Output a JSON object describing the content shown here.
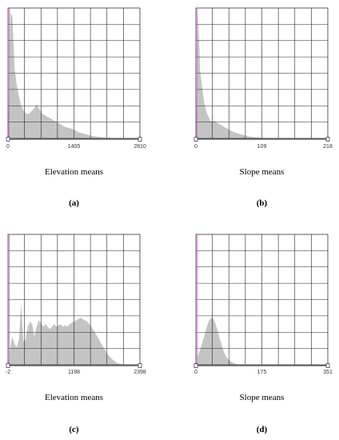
{
  "chart_data": [
    {
      "type": "area",
      "panel_label": "(a)",
      "xlabel": "Elevation means",
      "ticks": [
        "0",
        "1405",
        "2810"
      ],
      "xlim": [
        0,
        2810
      ],
      "y_norm": [
        0,
        1.0,
        0.95,
        0.55,
        0.42,
        0.33,
        0.26,
        0.22,
        0.2,
        0.19,
        0.2,
        0.22,
        0.24,
        0.27,
        0.24,
        0.21,
        0.19,
        0.18,
        0.17,
        0.16,
        0.15,
        0.14,
        0.13,
        0.12,
        0.11,
        0.1,
        0.09,
        0.085,
        0.08,
        0.075,
        0.07,
        0.06,
        0.05,
        0.045,
        0.04,
        0.035,
        0.03,
        0.025,
        0.02,
        0.017,
        0.015,
        0.012,
        0.01,
        0.008,
        0.006,
        0.005,
        0.004,
        0.003,
        0.002,
        0.002,
        0.001,
        0.001,
        0.001,
        0.001,
        0.001,
        0.001,
        0.0005,
        0.0005,
        0,
        0,
        0
      ]
    },
    {
      "type": "area",
      "panel_label": "(b)",
      "xlabel": "Slope means",
      "ticks": [
        "0",
        "109",
        "218"
      ],
      "xlim": [
        0,
        218
      ],
      "y_norm": [
        0,
        0.98,
        0.52,
        0.38,
        0.26,
        0.2,
        0.16,
        0.13,
        0.14,
        0.13,
        0.12,
        0.11,
        0.1,
        0.09,
        0.08,
        0.07,
        0.06,
        0.05,
        0.045,
        0.04,
        0.035,
        0.03,
        0.025,
        0.02,
        0.016,
        0.013,
        0.01,
        0.008,
        0.006,
        0.005,
        0.004,
        0.003,
        0.002,
        0.002,
        0.001,
        0.001,
        0.001,
        0.0005,
        0.0005,
        0.0005,
        0,
        0,
        0,
        0,
        0,
        0,
        0,
        0,
        0,
        0,
        0,
        0,
        0,
        0,
        0,
        0,
        0,
        0,
        0,
        0,
        0
      ]
    },
    {
      "type": "area",
      "panel_label": "(c)",
      "xlabel": "Elevation means",
      "ticks": [
        "-2",
        "1198",
        "2398"
      ],
      "xlim": [
        -2,
        2398
      ],
      "y_norm": [
        0,
        0.14,
        0.22,
        0.16,
        0.14,
        0.2,
        0.48,
        0.18,
        0.2,
        0.3,
        0.34,
        0.32,
        0.22,
        0.3,
        0.35,
        0.33,
        0.3,
        0.32,
        0.3,
        0.28,
        0.3,
        0.32,
        0.3,
        0.31,
        0.32,
        0.3,
        0.31,
        0.3,
        0.32,
        0.33,
        0.34,
        0.35,
        0.36,
        0.37,
        0.36,
        0.35,
        0.34,
        0.32,
        0.3,
        0.27,
        0.24,
        0.21,
        0.18,
        0.15,
        0.12,
        0.09,
        0.07,
        0.05,
        0.035,
        0.02,
        0.012,
        0.008,
        0.005,
        0.003,
        0.001,
        0,
        0,
        0,
        0,
        0,
        0
      ]
    },
    {
      "type": "area",
      "panel_label": "(d)",
      "xlabel": "Slope means",
      "ticks": [
        "0",
        "175",
        "351"
      ],
      "xlim": [
        0,
        351
      ],
      "y_norm": [
        0,
        0.08,
        0.12,
        0.18,
        0.24,
        0.3,
        0.35,
        0.37,
        0.36,
        0.32,
        0.26,
        0.2,
        0.14,
        0.09,
        0.06,
        0.04,
        0.025,
        0.015,
        0.008,
        0.004,
        0.002,
        0.001,
        0,
        0,
        0,
        0,
        0,
        0,
        0,
        0,
        0,
        0,
        0,
        0,
        0,
        0,
        0,
        0,
        0,
        0,
        0,
        0,
        0,
        0,
        0,
        0,
        0,
        0,
        0,
        0,
        0,
        0,
        0,
        0,
        0,
        0,
        0,
        0,
        0,
        0,
        0
      ]
    }
  ]
}
